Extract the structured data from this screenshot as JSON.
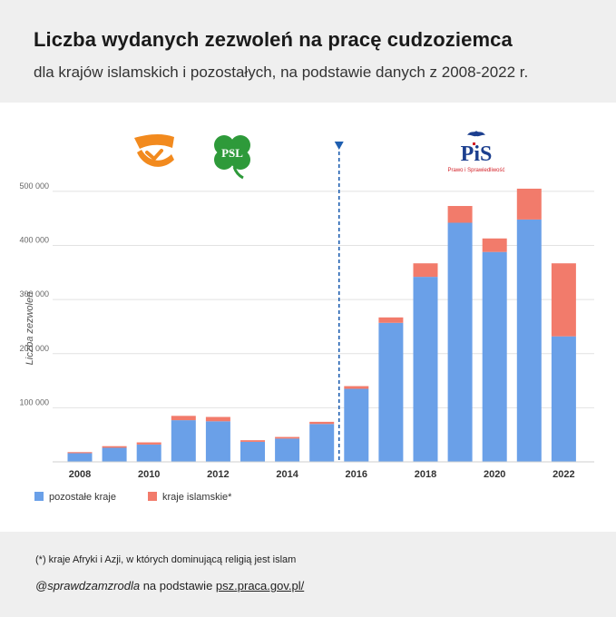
{
  "header": {
    "title": "Liczba wydanych zezwoleń na pracę cudzoziemca",
    "subtitle": "dla krajów islamskich i pozostałych, na podstawie danych z 2008-2022 r."
  },
  "logos": {
    "po": {
      "name": "po-logo-icon",
      "color": "#f28a1e"
    },
    "psl": {
      "name": "psl-clover-icon",
      "label": "PSL",
      "color": "#2e9a3a"
    },
    "pis": {
      "name": "pis-eagle-icon",
      "label": "PiS",
      "caption": "Prawo i Sprawiedliwość",
      "color": "#1c3f8f",
      "accent": "#d32027"
    }
  },
  "chart_data": {
    "type": "bar",
    "stacked": true,
    "x": [
      2008,
      2009,
      2010,
      2011,
      2012,
      2013,
      2014,
      2015,
      2016,
      2017,
      2018,
      2019,
      2020,
      2021,
      2022
    ],
    "x_tick_labels": [
      "2008",
      "2010",
      "2012",
      "2014",
      "2016",
      "2018",
      "2020",
      "2022"
    ],
    "series": [
      {
        "name": "pozostałe kraje",
        "color": "#6aa0e8",
        "values": [
          16000,
          26000,
          32000,
          77000,
          75000,
          37000,
          43000,
          70000,
          135000,
          257000,
          342000,
          442000,
          388000,
          448000,
          232000
        ]
      },
      {
        "name": "kraje islamskie*",
        "color": "#f27b6b",
        "values": [
          2000,
          3000,
          4000,
          8000,
          8000,
          3000,
          3000,
          4000,
          5000,
          10000,
          25000,
          31000,
          25000,
          57000,
          135000
        ]
      }
    ],
    "ylabel": "Liczba zezwoleń",
    "y_ticks": [
      100000,
      200000,
      300000,
      400000,
      500000
    ],
    "y_tick_labels": [
      "100 000",
      "200 000",
      "300 000",
      "400 000",
      "500 000"
    ],
    "ylim": [
      0,
      520000
    ],
    "grid": true,
    "marker_line_after": 2015,
    "marker_color": "#1f5fb0",
    "legend_position": "bottom-left"
  },
  "footer": {
    "footnote": "(*) kraje Afryki i Azji, w których dominującą religią jest islam",
    "source_handle": "@sprawdzamzrodla",
    "source_text": " na podstawie ",
    "source_link": "psz.praca.gov.pl/"
  }
}
